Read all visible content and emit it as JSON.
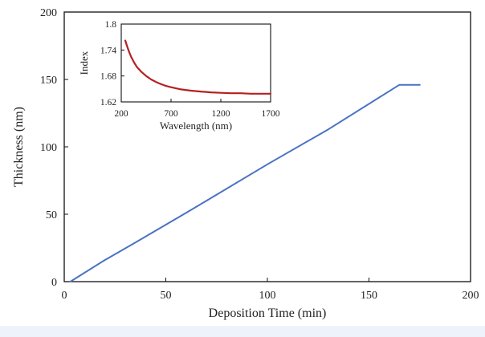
{
  "chart_data": [
    {
      "type": "line",
      "xlabel": "Deposition Time (min)",
      "ylabel": "Thickness (nm)",
      "xlim": [
        0,
        200
      ],
      "ylim": [
        0,
        200
      ],
      "x_ticks": [
        "0",
        "50",
        "100",
        "150",
        "200"
      ],
      "y_ticks": [
        "0",
        "50",
        "100",
        "150",
        "200"
      ],
      "grid": false,
      "series": [
        {
          "color": "#4a72c4",
          "x": [
            3,
            20,
            35,
            60,
            100,
            130,
            165,
            168,
            175
          ],
          "y": [
            0,
            16,
            29,
            51,
            87,
            113,
            146,
            146,
            146
          ]
        }
      ]
    },
    {
      "type": "line",
      "xlabel": "Wavelength (nm)",
      "ylabel": "Index",
      "xlim": [
        200,
        1700
      ],
      "ylim": [
        1.62,
        1.8
      ],
      "x_ticks": [
        "200",
        "700",
        "1200",
        "1700"
      ],
      "y_ticks": [
        "1.62",
        "1.68",
        "1.74",
        "1.8"
      ],
      "grid": false,
      "series": [
        {
          "color": "#b52020",
          "x": [
            240,
            260,
            280,
            300,
            330,
            360,
            400,
            450,
            500,
            550,
            600,
            650,
            700,
            800,
            900,
            1000,
            1100,
            1200,
            1300,
            1400,
            1500,
            1600,
            1700
          ],
          "y": [
            1.762,
            1.748,
            1.735,
            1.724,
            1.711,
            1.7,
            1.69,
            1.68,
            1.672,
            1.666,
            1.661,
            1.657,
            1.654,
            1.649,
            1.646,
            1.644,
            1.642,
            1.641,
            1.64,
            1.64,
            1.639,
            1.639,
            1.639
          ]
        }
      ]
    }
  ]
}
